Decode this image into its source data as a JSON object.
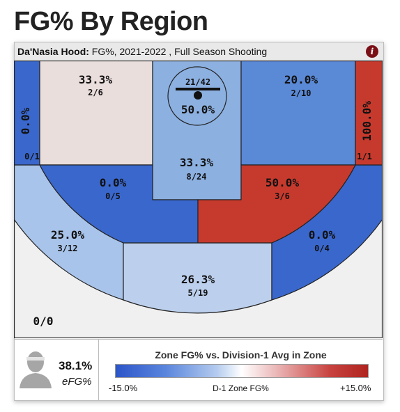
{
  "page_title": "FG% By Region",
  "header": {
    "player": "Da'Nasia Hood:",
    "subtitle": "FG%, 2021-2022 , Full Season Shooting",
    "info_icon": "info-icon"
  },
  "chart_data": {
    "type": "heatmap",
    "title": "FG% By Region",
    "zones": [
      {
        "id": "left-corner-3",
        "pct": "0.0%",
        "frac": "0/1",
        "color": "#3a67cc"
      },
      {
        "id": "left-baseline-mid",
        "pct": "33.3%",
        "frac": "2/6",
        "color": "#eadedd"
      },
      {
        "id": "restricted-area",
        "pct": "50.0%",
        "frac": "21/42",
        "color": "#8cb0e0"
      },
      {
        "id": "paint",
        "pct": "33.3%",
        "frac": "8/24",
        "color": "#8cb0e0"
      },
      {
        "id": "right-baseline-mid",
        "pct": "20.0%",
        "frac": "2/10",
        "color": "#5a89d6"
      },
      {
        "id": "right-corner-3",
        "pct": "100.0%",
        "frac": "1/1",
        "color": "#c63a2e"
      },
      {
        "id": "left-elbow-mid",
        "pct": "0.0%",
        "frac": "0/5",
        "color": "#3a67cc"
      },
      {
        "id": "right-elbow-mid",
        "pct": "50.0%",
        "frac": "3/6",
        "color": "#c63a2e"
      },
      {
        "id": "left-wing-3",
        "pct": "25.0%",
        "frac": "3/12",
        "color": "#a9c4ea"
      },
      {
        "id": "top-key-3",
        "pct": "26.3%",
        "frac": "5/19",
        "color": "#bccfec"
      },
      {
        "id": "right-wing-3",
        "pct": "0.0%",
        "frac": "0/4",
        "color": "#3a67cc"
      },
      {
        "id": "backcourt",
        "pct": "",
        "frac": "0/0",
        "color": "#f0f0f0"
      }
    ],
    "legend": {
      "title": "Zone FG% vs. Division-1 Avg in Zone",
      "min_label": "-15.0%",
      "max_label": "+15.0%",
      "axis_label": "D-1 Zone FG%",
      "colors": [
        "#2c55c9",
        "#ffffff",
        "#b0241f"
      ]
    }
  },
  "player_stats": {
    "efg_value": "38.1%",
    "efg_label": "eFG%",
    "avatar_icon": "player-avatar-icon"
  }
}
